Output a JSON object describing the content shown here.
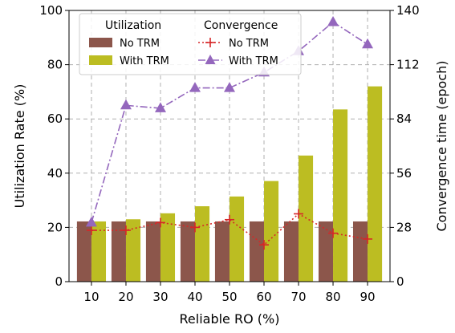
{
  "chart_data": {
    "type": "bar",
    "x": [
      10,
      20,
      30,
      40,
      50,
      60,
      70,
      80,
      90
    ],
    "xlabel": "Reliable RO (%)",
    "ylabel": "Utilization Rate (%)",
    "ylabel_right": "Convergence time (epoch)",
    "ylim": [
      0,
      100
    ],
    "ylim_right": [
      0,
      140
    ],
    "yticks": [
      0,
      20,
      40,
      60,
      80,
      100
    ],
    "yticks_right": [
      0,
      28,
      56,
      84,
      112,
      140
    ],
    "grid": true,
    "bar_series": [
      {
        "name": "No TRM",
        "color": "#8c564b",
        "values": [
          22.2,
          22.2,
          22.2,
          22.2,
          22.2,
          22.2,
          22.2,
          22.2,
          22.2
        ]
      },
      {
        "name": "With TRM",
        "color": "#bcbd22",
        "values": [
          22.2,
          23.0,
          25.2,
          27.8,
          31.4,
          37.1,
          46.5,
          63.5,
          72.0
        ]
      }
    ],
    "line_series": [
      {
        "name": "No TRM",
        "color": "#d62728",
        "marker": "plus",
        "style": "dotted",
        "values": [
          26.5,
          26.5,
          30.5,
          28.0,
          32.0,
          19.0,
          35.0,
          25.0,
          22.0
        ]
      },
      {
        "name": "With TRM",
        "color": "#9467bd",
        "marker": "triangle",
        "style": "dashdot",
        "values": [
          30.5,
          91.0,
          89.5,
          100.0,
          100.0,
          108.0,
          119.0,
          134.0,
          122.5
        ]
      }
    ],
    "legend": {
      "placement": "top-left",
      "group_titles": [
        "Utilization",
        "Convergence"
      ]
    }
  }
}
